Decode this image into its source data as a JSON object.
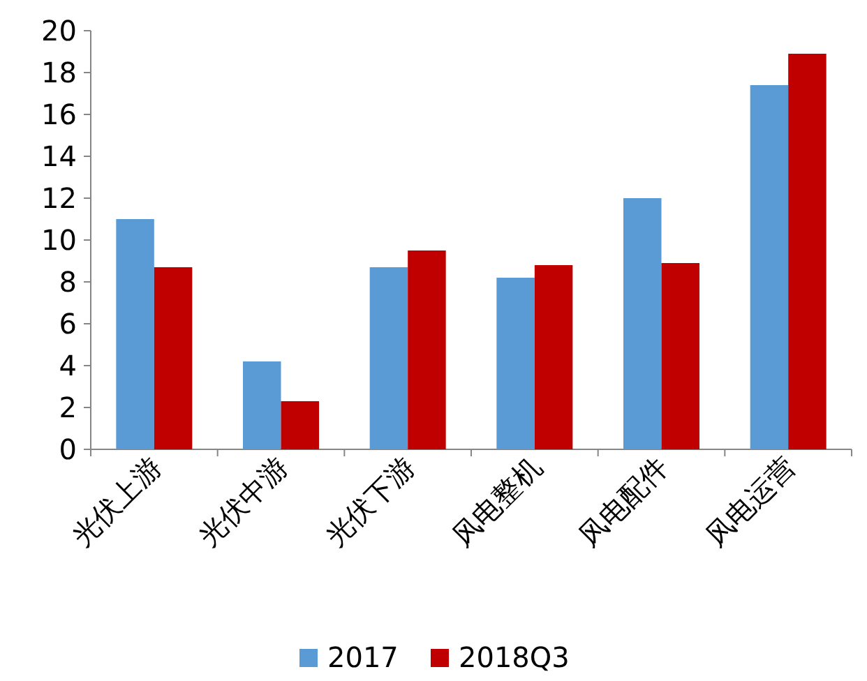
{
  "chart_data": {
    "type": "bar",
    "categories": [
      "光伏上游",
      "光伏中游",
      "光伏下游",
      "风电整机",
      "风电配件",
      "风电运营"
    ],
    "series": [
      {
        "name": "2017",
        "color": "#5b9bd5",
        "values": [
          11.0,
          4.2,
          8.7,
          8.2,
          12.0,
          17.4
        ]
      },
      {
        "name": "2018Q3",
        "color": "#c00000",
        "values": [
          8.7,
          2.3,
          9.5,
          8.8,
          8.9,
          18.9
        ]
      }
    ],
    "ylim": [
      0,
      20
    ],
    "yticks": [
      0,
      2,
      4,
      6,
      8,
      10,
      12,
      14,
      16,
      18,
      20
    ],
    "legend": "bottom"
  }
}
